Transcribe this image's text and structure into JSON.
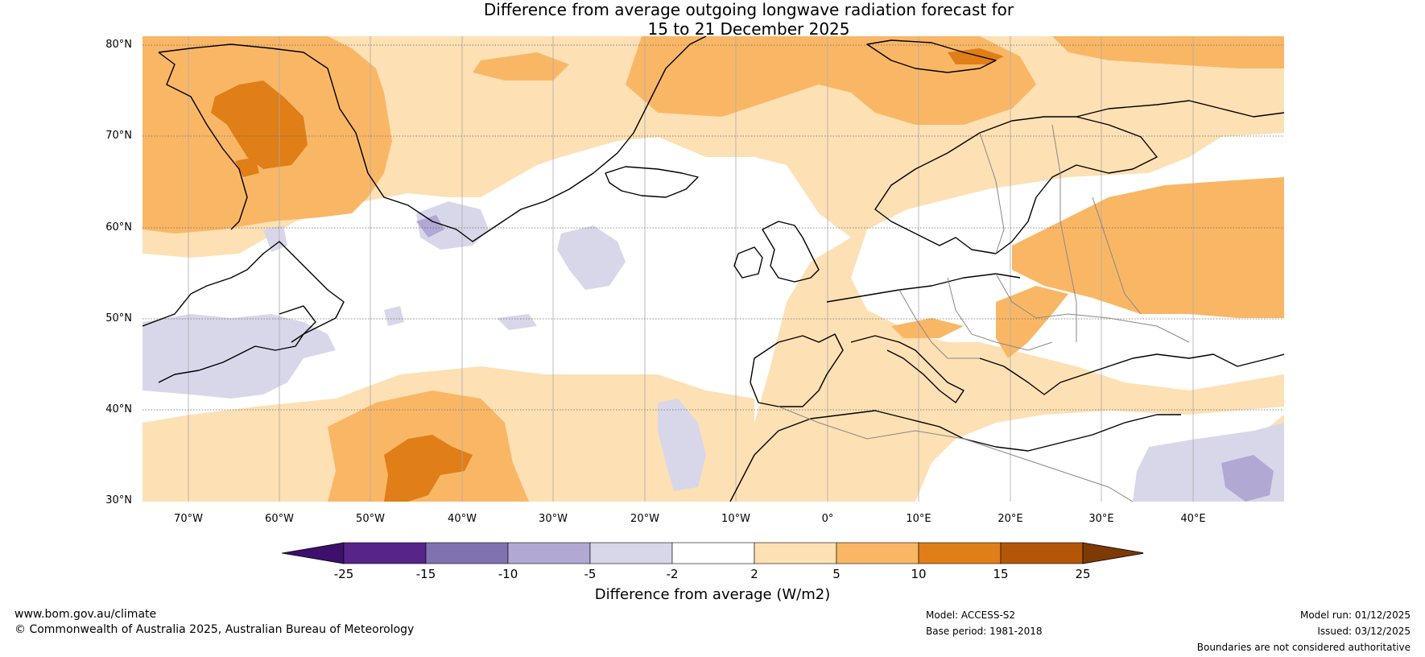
{
  "title": {
    "line1": "Difference from average outgoing longwave radiation forecast for",
    "line2": "15 to 21 December 2025"
  },
  "map": {
    "lat_labels": [
      "80°N",
      "70°N",
      "60°N",
      "50°N",
      "40°N",
      "30°N"
    ],
    "lon_labels": [
      "70°W",
      "60°W",
      "50°W",
      "40°W",
      "30°W",
      "20°W",
      "10°W",
      "0°",
      "10°E",
      "20°E",
      "30°E",
      "40°E"
    ],
    "lat_range": [
      30,
      81
    ],
    "lon_range": [
      -75,
      50
    ]
  },
  "colorbar": {
    "title": "Difference from average (W/m2)",
    "tick_labels": [
      "-25",
      "-15",
      "-10",
      "-5",
      "-2",
      "2",
      "5",
      "10",
      "15",
      "25"
    ],
    "colors": [
      "#3e0f6b",
      "#57248a",
      "#8072b0",
      "#b1a8d4",
      "#d8d7ea",
      "#ffffff",
      "#fde0b4",
      "#f9b766",
      "#e07e17",
      "#b45608",
      "#7d3a05"
    ]
  },
  "footer": {
    "website": "www.bom.gov.au/climate",
    "copyright": "© Commonwealth of Australia 2025, Australian Bureau of Meteorology",
    "model": "Model: ACCESS-S2",
    "base_period": "Base period: 1981-2018",
    "model_run": "Model run: 01/12/2025",
    "issued": "Issued: 03/12/2025",
    "disclaimer": "Boundaries are not considered authoritative"
  }
}
